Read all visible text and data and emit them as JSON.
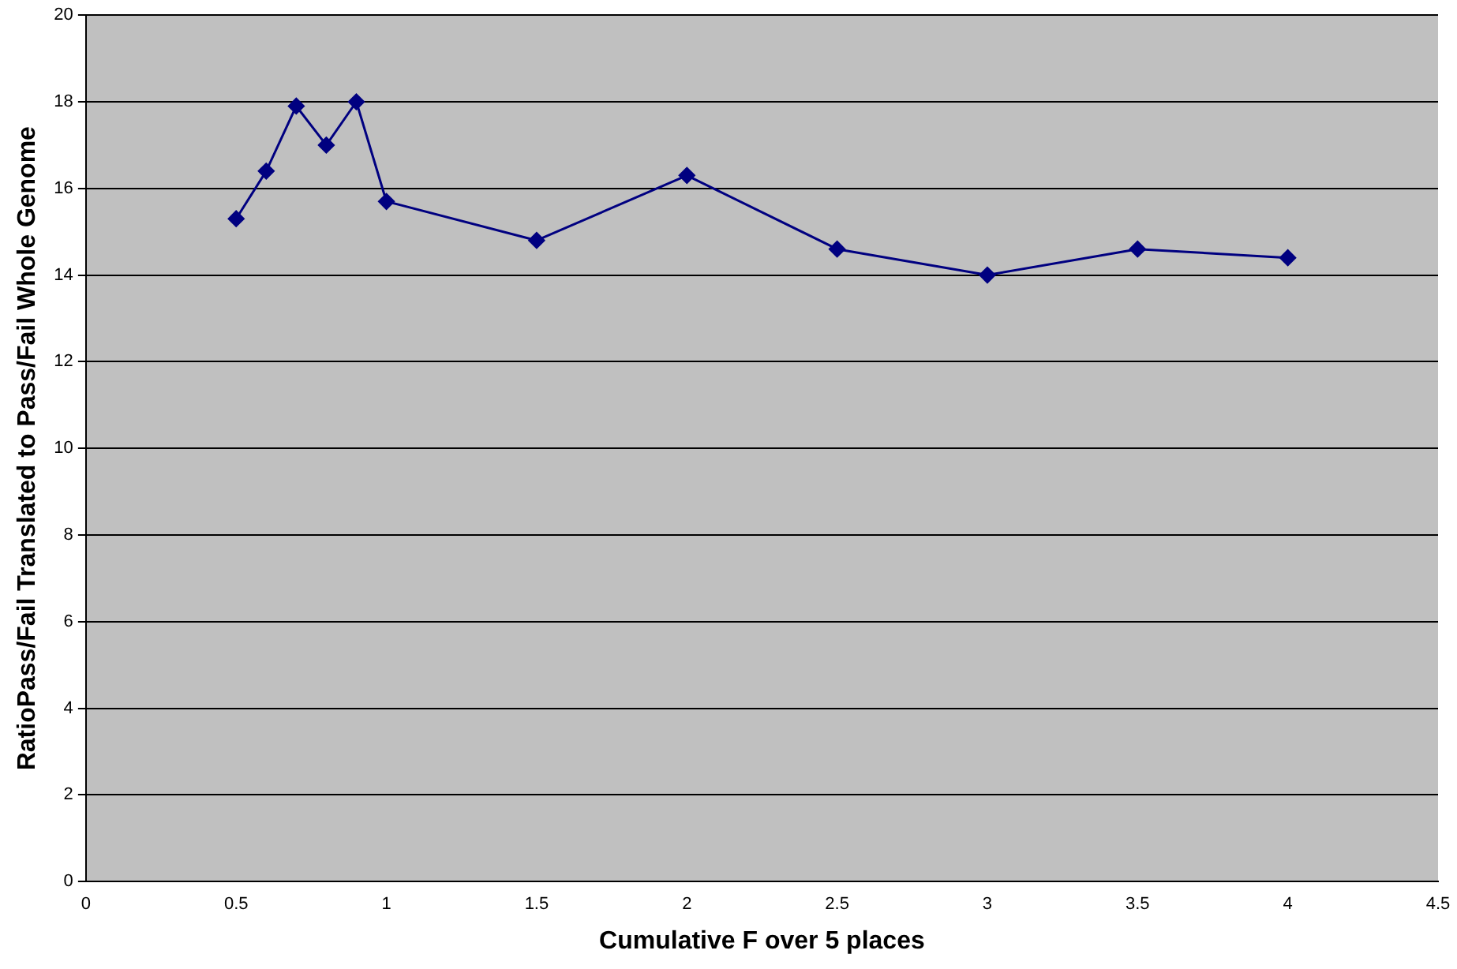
{
  "chart_data": {
    "type": "line",
    "xlabel": "Cumulative F over 5 places",
    "ylabel": "RatioPass/Fail Translated to Pass/Fail Whole Genome",
    "x": [
      0.5,
      0.6,
      0.7,
      0.8,
      0.9,
      1.0,
      1.5,
      2.0,
      2.5,
      3.0,
      3.5,
      4.0
    ],
    "series": [
      {
        "color": "#000080",
        "values": [
          15.3,
          16.4,
          17.9,
          17.0,
          18.0,
          15.7,
          14.8,
          16.3,
          14.6,
          14.0,
          14.6,
          14.4
        ]
      }
    ],
    "xlim": [
      0,
      4.5
    ],
    "xticks": [
      0,
      0.5,
      1,
      1.5,
      2,
      2.5,
      3,
      3.5,
      4,
      4.5
    ],
    "ylim": [
      0,
      20
    ],
    "yticks": [
      0,
      2,
      4,
      6,
      8,
      10,
      12,
      14,
      16,
      18,
      20
    ],
    "grid": "y",
    "legend": false,
    "marker": "diamond",
    "line_style": "solid"
  }
}
